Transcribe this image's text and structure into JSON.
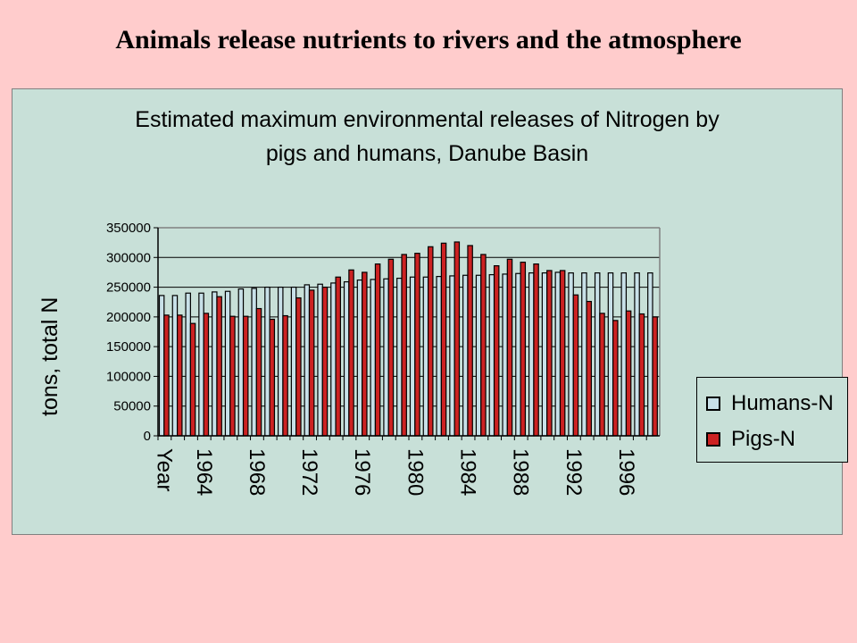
{
  "slide_title": "Animals release nutrients to rivers and the atmosphere",
  "chart_data": {
    "type": "bar",
    "title_lines": [
      "Estimated maximum environmental releases of Nitrogen by",
      "pigs and humans, Danube Basin"
    ],
    "ylabel": "tons, total N",
    "xlabel_text": "Year",
    "ylim": [
      0,
      350000
    ],
    "yticks": [
      0,
      50000,
      100000,
      150000,
      200000,
      250000,
      300000,
      350000
    ],
    "x_tick_labels": [
      "1964",
      "1968",
      "1972",
      "1976",
      "1980",
      "1984",
      "1988",
      "1992",
      "1996"
    ],
    "categories": [
      "1961",
      "1962",
      "1963",
      "1964",
      "1965",
      "1966",
      "1967",
      "1968",
      "1969",
      "1970",
      "1971",
      "1972",
      "1973",
      "1974",
      "1975",
      "1976",
      "1977",
      "1978",
      "1979",
      "1980",
      "1981",
      "1982",
      "1983",
      "1984",
      "1985",
      "1986",
      "1987",
      "1988",
      "1989",
      "1990",
      "1991",
      "1992",
      "1993",
      "1994",
      "1995",
      "1996",
      "1997",
      "1998"
    ],
    "series": [
      {
        "name": "Humans-N",
        "color": "#c8e0e8",
        "values": [
          236000,
          236000,
          240000,
          240000,
          242000,
          243000,
          247000,
          248000,
          250000,
          250000,
          250000,
          254000,
          255000,
          257000,
          259000,
          262000,
          263000,
          264000,
          265000,
          267000,
          267000,
          268000,
          269000,
          270000,
          270000,
          271000,
          272000,
          273000,
          274000,
          274000,
          275000,
          274000,
          274000,
          274000,
          274000,
          274000,
          274000,
          274000
        ]
      },
      {
        "name": "Pigs-N",
        "color": "#cc2222",
        "values": [
          203000,
          203000,
          189000,
          206000,
          234000,
          201000,
          201000,
          214000,
          196000,
          202000,
          232000,
          245000,
          250000,
          267000,
          279000,
          275000,
          289000,
          297000,
          305000,
          307000,
          318000,
          324000,
          326000,
          320000,
          305000,
          286000,
          297000,
          292000,
          289000,
          278000,
          278000,
          237000,
          226000,
          206000,
          194000,
          210000,
          205000,
          200000
        ]
      }
    ],
    "grid": "horizontal",
    "legend_position": "right"
  }
}
